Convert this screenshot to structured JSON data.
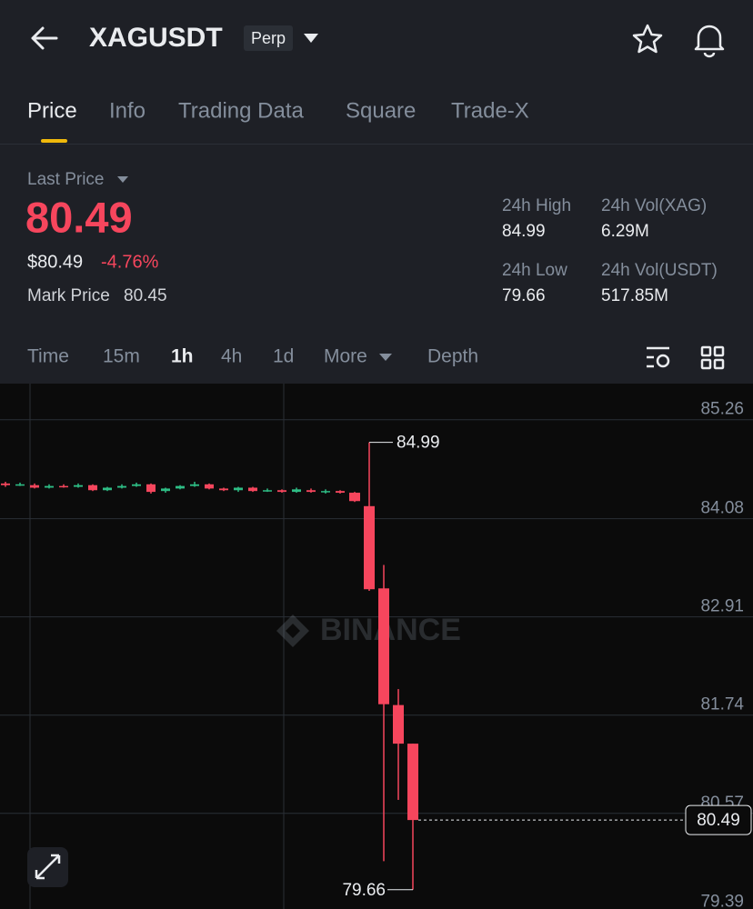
{
  "header": {
    "symbol": "XAGUSDT",
    "badge": "Perp"
  },
  "tabs": [
    "Price",
    "Info",
    "Trading Data",
    "Square",
    "Trade-X"
  ],
  "price": {
    "last_price_label": "Last Price",
    "last_price": "80.49",
    "usd_price": "$80.49",
    "change": "-4.76%",
    "mark_price_label": "Mark Price",
    "mark_price": "80.45"
  },
  "stats": [
    {
      "label": "24h High",
      "value": "84.99"
    },
    {
      "label": "24h Vol(XAG)",
      "value": "6.29M"
    },
    {
      "label": "24h Low",
      "value": "79.66"
    },
    {
      "label": "24h Vol(USDT)",
      "value": "517.85M"
    }
  ],
  "intervals": [
    "Time",
    "15m",
    "1h",
    "4h",
    "1d",
    "More",
    "Depth"
  ],
  "chart": {
    "type": "candlestick",
    "watermark": "BINANCE",
    "ylim": [
      79.43,
      85.69
    ],
    "yticks": [
      85.26,
      84.08,
      82.91,
      81.74,
      80.57,
      79.39
    ],
    "up_color": "#2ebd85",
    "down_color": "#f6465d",
    "candles": {
      "open": [
        84.5,
        84.48,
        84.48,
        84.45,
        84.47,
        84.46,
        84.48,
        84.42,
        84.45,
        84.47,
        84.49,
        84.41,
        84.44,
        84.47,
        84.49,
        84.44,
        84.42,
        84.45,
        84.41,
        84.42,
        84.4,
        84.42,
        84.4,
        84.41,
        84.39,
        84.23,
        83.25,
        81.86,
        81.4
      ],
      "high": [
        84.52,
        84.51,
        84.5,
        84.49,
        84.49,
        84.5,
        84.49,
        84.46,
        84.49,
        84.51,
        84.5,
        84.45,
        84.48,
        84.52,
        84.5,
        84.45,
        84.46,
        84.46,
        84.44,
        84.43,
        84.45,
        84.44,
        84.43,
        84.42,
        84.4,
        84.99,
        83.53,
        82.05,
        81.4
      ],
      "low": [
        84.46,
        84.47,
        84.44,
        84.44,
        84.45,
        84.45,
        84.41,
        84.41,
        84.44,
        84.46,
        84.38,
        84.39,
        84.43,
        84.46,
        84.43,
        84.41,
        84.4,
        84.4,
        84.4,
        84.39,
        84.39,
        84.39,
        84.38,
        84.38,
        84.28,
        83.22,
        80.0,
        80.73,
        79.66
      ],
      "close": [
        84.48,
        84.49,
        84.45,
        84.47,
        84.46,
        84.48,
        84.42,
        84.45,
        84.47,
        84.49,
        84.4,
        84.44,
        84.47,
        84.49,
        84.44,
        84.42,
        84.45,
        84.41,
        84.42,
        84.4,
        84.43,
        84.4,
        84.41,
        84.39,
        84.29,
        83.24,
        81.87,
        81.4,
        80.49
      ]
    },
    "high_label": 84.99,
    "low_label": 79.66,
    "last_label": 80.49
  }
}
